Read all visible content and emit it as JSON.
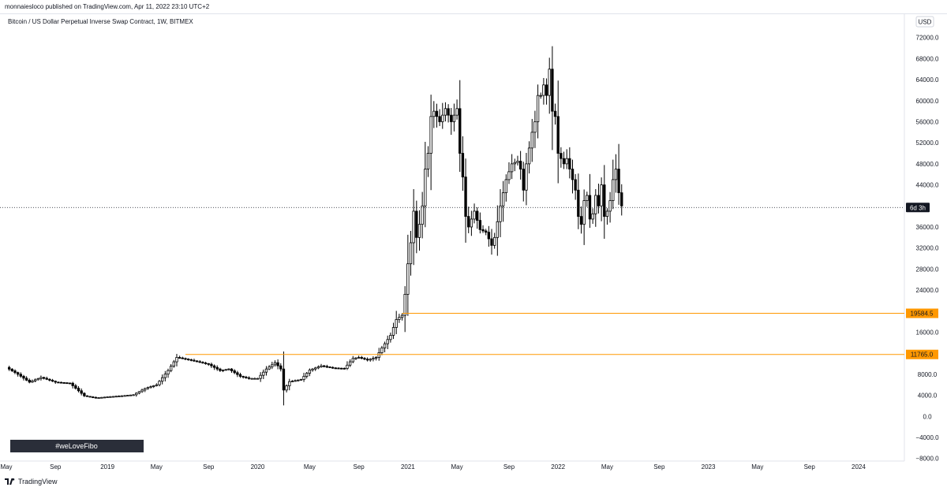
{
  "header": {
    "published": "monnaiesloco published on TradingView.com, Apr 11, 2022 23:10 UTC+2"
  },
  "footer": {
    "brand": "TradingView"
  },
  "colors": {
    "candle": "#000000",
    "level_line": "#ff9800",
    "level_tag_bg": "#ff9800",
    "countdown_bg": "#131722",
    "banner_bg": "#2a2e39"
  },
  "chart_data": {
    "type": "candlestick",
    "title": "Bitcoin / US Dollar Perpetual Inverse Swap Contract, 1W, BITMEX",
    "currency": "USD",
    "ylim": [
      -8500,
      74500
    ],
    "y_ticks": [
      72000,
      68000,
      64000,
      60000,
      56000,
      52000,
      48000,
      44000,
      40000,
      36000,
      32000,
      28000,
      24000,
      20000,
      16000,
      12000,
      8000,
      4000,
      0,
      -4000,
      -8000
    ],
    "y_tick_labels": [
      "72000.0",
      "68000.0",
      "64000.0",
      "60000.0",
      "56000.0",
      "52000.0",
      "48000.0",
      "44000.0",
      "",
      "36000.0",
      "32000.0",
      "28000.0",
      "24000.0",
      "",
      "16000.0",
      "",
      "8000.0",
      "4000.0",
      "0.0",
      "−4000.0",
      "−8000.0"
    ],
    "x_ticks": [
      {
        "label": "May",
        "week": 0
      },
      {
        "label": "Sep",
        "week": 17
      },
      {
        "label": "2019",
        "week": 35
      },
      {
        "label": "May",
        "week": 52
      },
      {
        "label": "Sep",
        "week": 70
      },
      {
        "label": "2020",
        "week": 87
      },
      {
        "label": "May",
        "week": 105
      },
      {
        "label": "Sep",
        "week": 122
      },
      {
        "label": "2021",
        "week": 139
      },
      {
        "label": "May",
        "week": 156
      },
      {
        "label": "Sep",
        "week": 174
      },
      {
        "label": "2022",
        "week": 191
      },
      {
        "label": "May",
        "week": 208
      },
      {
        "label": "Sep",
        "week": 226
      },
      {
        "label": "2023",
        "week": 243
      },
      {
        "label": "May",
        "week": 260
      },
      {
        "label": "Sep",
        "week": 278
      },
      {
        "label": "2024",
        "week": 295
      }
    ],
    "x_range_weeks": [
      0,
      309
    ],
    "close_anchors": [
      [
        0,
        9300
      ],
      [
        4,
        8000
      ],
      [
        8,
        6500
      ],
      [
        12,
        7400
      ],
      [
        17,
        6500
      ],
      [
        22,
        6300
      ],
      [
        27,
        3900
      ],
      [
        31,
        3500
      ],
      [
        35,
        3700
      ],
      [
        40,
        3900
      ],
      [
        44,
        4100
      ],
      [
        48,
        5300
      ],
      [
        52,
        6000
      ],
      [
        56,
        8700
      ],
      [
        59,
        11200
      ],
      [
        62,
        10900
      ],
      [
        66,
        10400
      ],
      [
        70,
        9900
      ],
      [
        74,
        8700
      ],
      [
        77,
        9000
      ],
      [
        81,
        7600
      ],
      [
        84,
        7200
      ],
      [
        87,
        7200
      ],
      [
        90,
        9000
      ],
      [
        93,
        10200
      ],
      [
        95,
        9000
      ],
      [
        96,
        5000
      ],
      [
        98,
        6600
      ],
      [
        102,
        7000
      ],
      [
        105,
        8800
      ],
      [
        109,
        9600
      ],
      [
        113,
        9200
      ],
      [
        117,
        9100
      ],
      [
        120,
        11000
      ],
      [
        122,
        11200
      ],
      [
        125,
        10700
      ],
      [
        128,
        11200
      ],
      [
        130,
        13000
      ],
      [
        133,
        15400
      ],
      [
        135,
        18400
      ],
      [
        137,
        19200
      ],
      [
        138,
        23200
      ],
      [
        139,
        29000
      ],
      [
        140,
        33000
      ],
      [
        141,
        39000
      ],
      [
        142,
        34000
      ],
      [
        143,
        36500
      ],
      [
        144,
        40000
      ],
      [
        145,
        47000
      ],
      [
        146,
        50000
      ],
      [
        147,
        57000
      ],
      [
        148,
        58000
      ],
      [
        150,
        56000
      ],
      [
        152,
        58500
      ],
      [
        154,
        56000
      ],
      [
        156,
        58500
      ],
      [
        157,
        50000
      ],
      [
        158,
        45500
      ],
      [
        159,
        38000
      ],
      [
        160,
        36000
      ],
      [
        162,
        39000
      ],
      [
        164,
        35500
      ],
      [
        166,
        35000
      ],
      [
        168,
        32500
      ],
      [
        169,
        34000
      ],
      [
        171,
        40000
      ],
      [
        173,
        45000
      ],
      [
        175,
        48000
      ],
      [
        177,
        48500
      ],
      [
        178,
        47000
      ],
      [
        179,
        43000
      ],
      [
        180,
        48000
      ],
      [
        182,
        54000
      ],
      [
        183,
        56000
      ],
      [
        184,
        61000
      ],
      [
        185,
        61000
      ],
      [
        186,
        63000
      ],
      [
        187,
        61000
      ],
      [
        188,
        66000
      ],
      [
        189,
        58000
      ],
      [
        190,
        57000
      ],
      [
        191,
        50000
      ],
      [
        193,
        48000
      ],
      [
        194,
        49000
      ],
      [
        195,
        47000
      ],
      [
        197,
        43000
      ],
      [
        198,
        38000
      ],
      [
        199,
        36500
      ],
      [
        200,
        41000
      ],
      [
        201,
        42000
      ],
      [
        202,
        37500
      ],
      [
        203,
        38500
      ],
      [
        204,
        42000
      ],
      [
        205,
        40000
      ],
      [
        206,
        44000
      ],
      [
        207,
        38000
      ],
      [
        208,
        39000
      ],
      [
        209,
        41000
      ],
      [
        210,
        45000
      ],
      [
        211,
        47000
      ],
      [
        212,
        42500
      ],
      [
        213,
        40000
      ]
    ],
    "levels": [
      {
        "value": 19584.5,
        "label": "19584.5",
        "start_week": 137
      },
      {
        "value": 11765.0,
        "label": "11765.0",
        "start_week": 62
      }
    ],
    "current_price_line": {
      "value": 39700,
      "countdown": "6d 3h"
    },
    "annotations": [
      {
        "text": "#weLoveFibo"
      }
    ]
  }
}
